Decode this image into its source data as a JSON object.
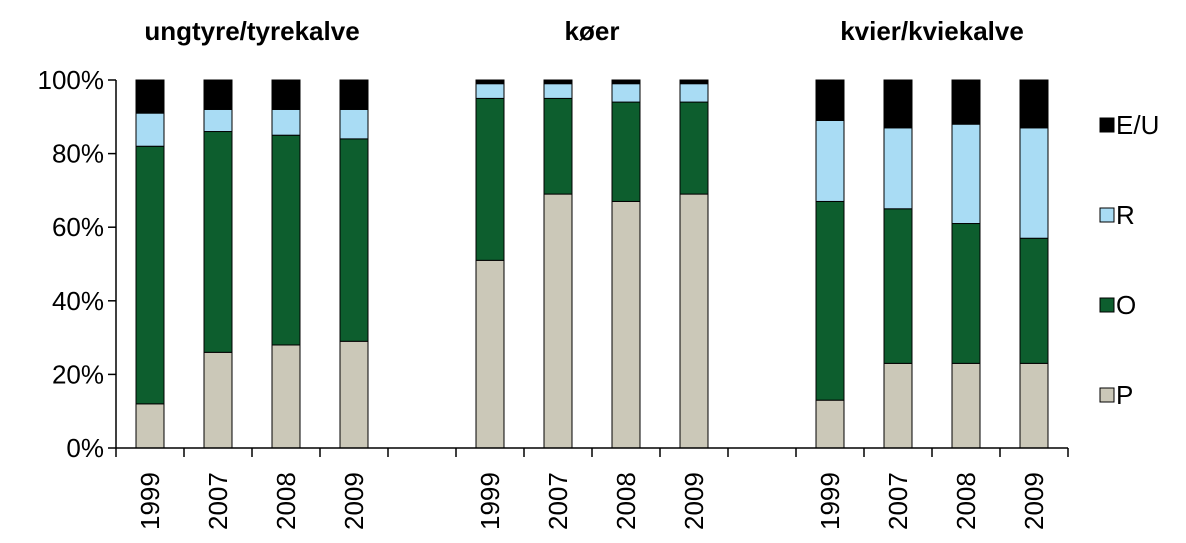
{
  "chart_data": {
    "type": "bar",
    "stacked": true,
    "percent": true,
    "ylim": [
      0,
      100
    ],
    "y_ticks": [
      "0%",
      "20%",
      "40%",
      "60%",
      "80%",
      "100%"
    ],
    "grid": false,
    "legend_position": "right",
    "groups": [
      {
        "title": "ungtyre/tyrekalve",
        "categories": [
          "1999",
          "2007",
          "2008",
          "2009"
        ]
      },
      {
        "title": "køer",
        "categories": [
          "1999",
          "2007",
          "2008",
          "2009"
        ]
      },
      {
        "title": "kvier/kviekalve",
        "categories": [
          "1999",
          "2007",
          "2008",
          "2009"
        ]
      }
    ],
    "series": [
      {
        "name": "P",
        "color": "#cbc8b8",
        "values": [
          12,
          26,
          28,
          29,
          51,
          69,
          67,
          69,
          13,
          23,
          23,
          23
        ]
      },
      {
        "name": "O",
        "color": "#0d5e2e",
        "values": [
          70,
          60,
          57,
          55,
          44,
          26,
          27,
          25,
          54,
          42,
          38,
          34
        ]
      },
      {
        "name": "R",
        "color": "#a9dcf4",
        "values": [
          9,
          6,
          7,
          8,
          4,
          4,
          5,
          5,
          22,
          22,
          27,
          30
        ]
      },
      {
        "name": "E/U",
        "color": "#000000",
        "values": [
          9,
          8,
          8,
          8,
          1,
          1,
          1,
          1,
          11,
          13,
          12,
          13
        ]
      }
    ]
  }
}
